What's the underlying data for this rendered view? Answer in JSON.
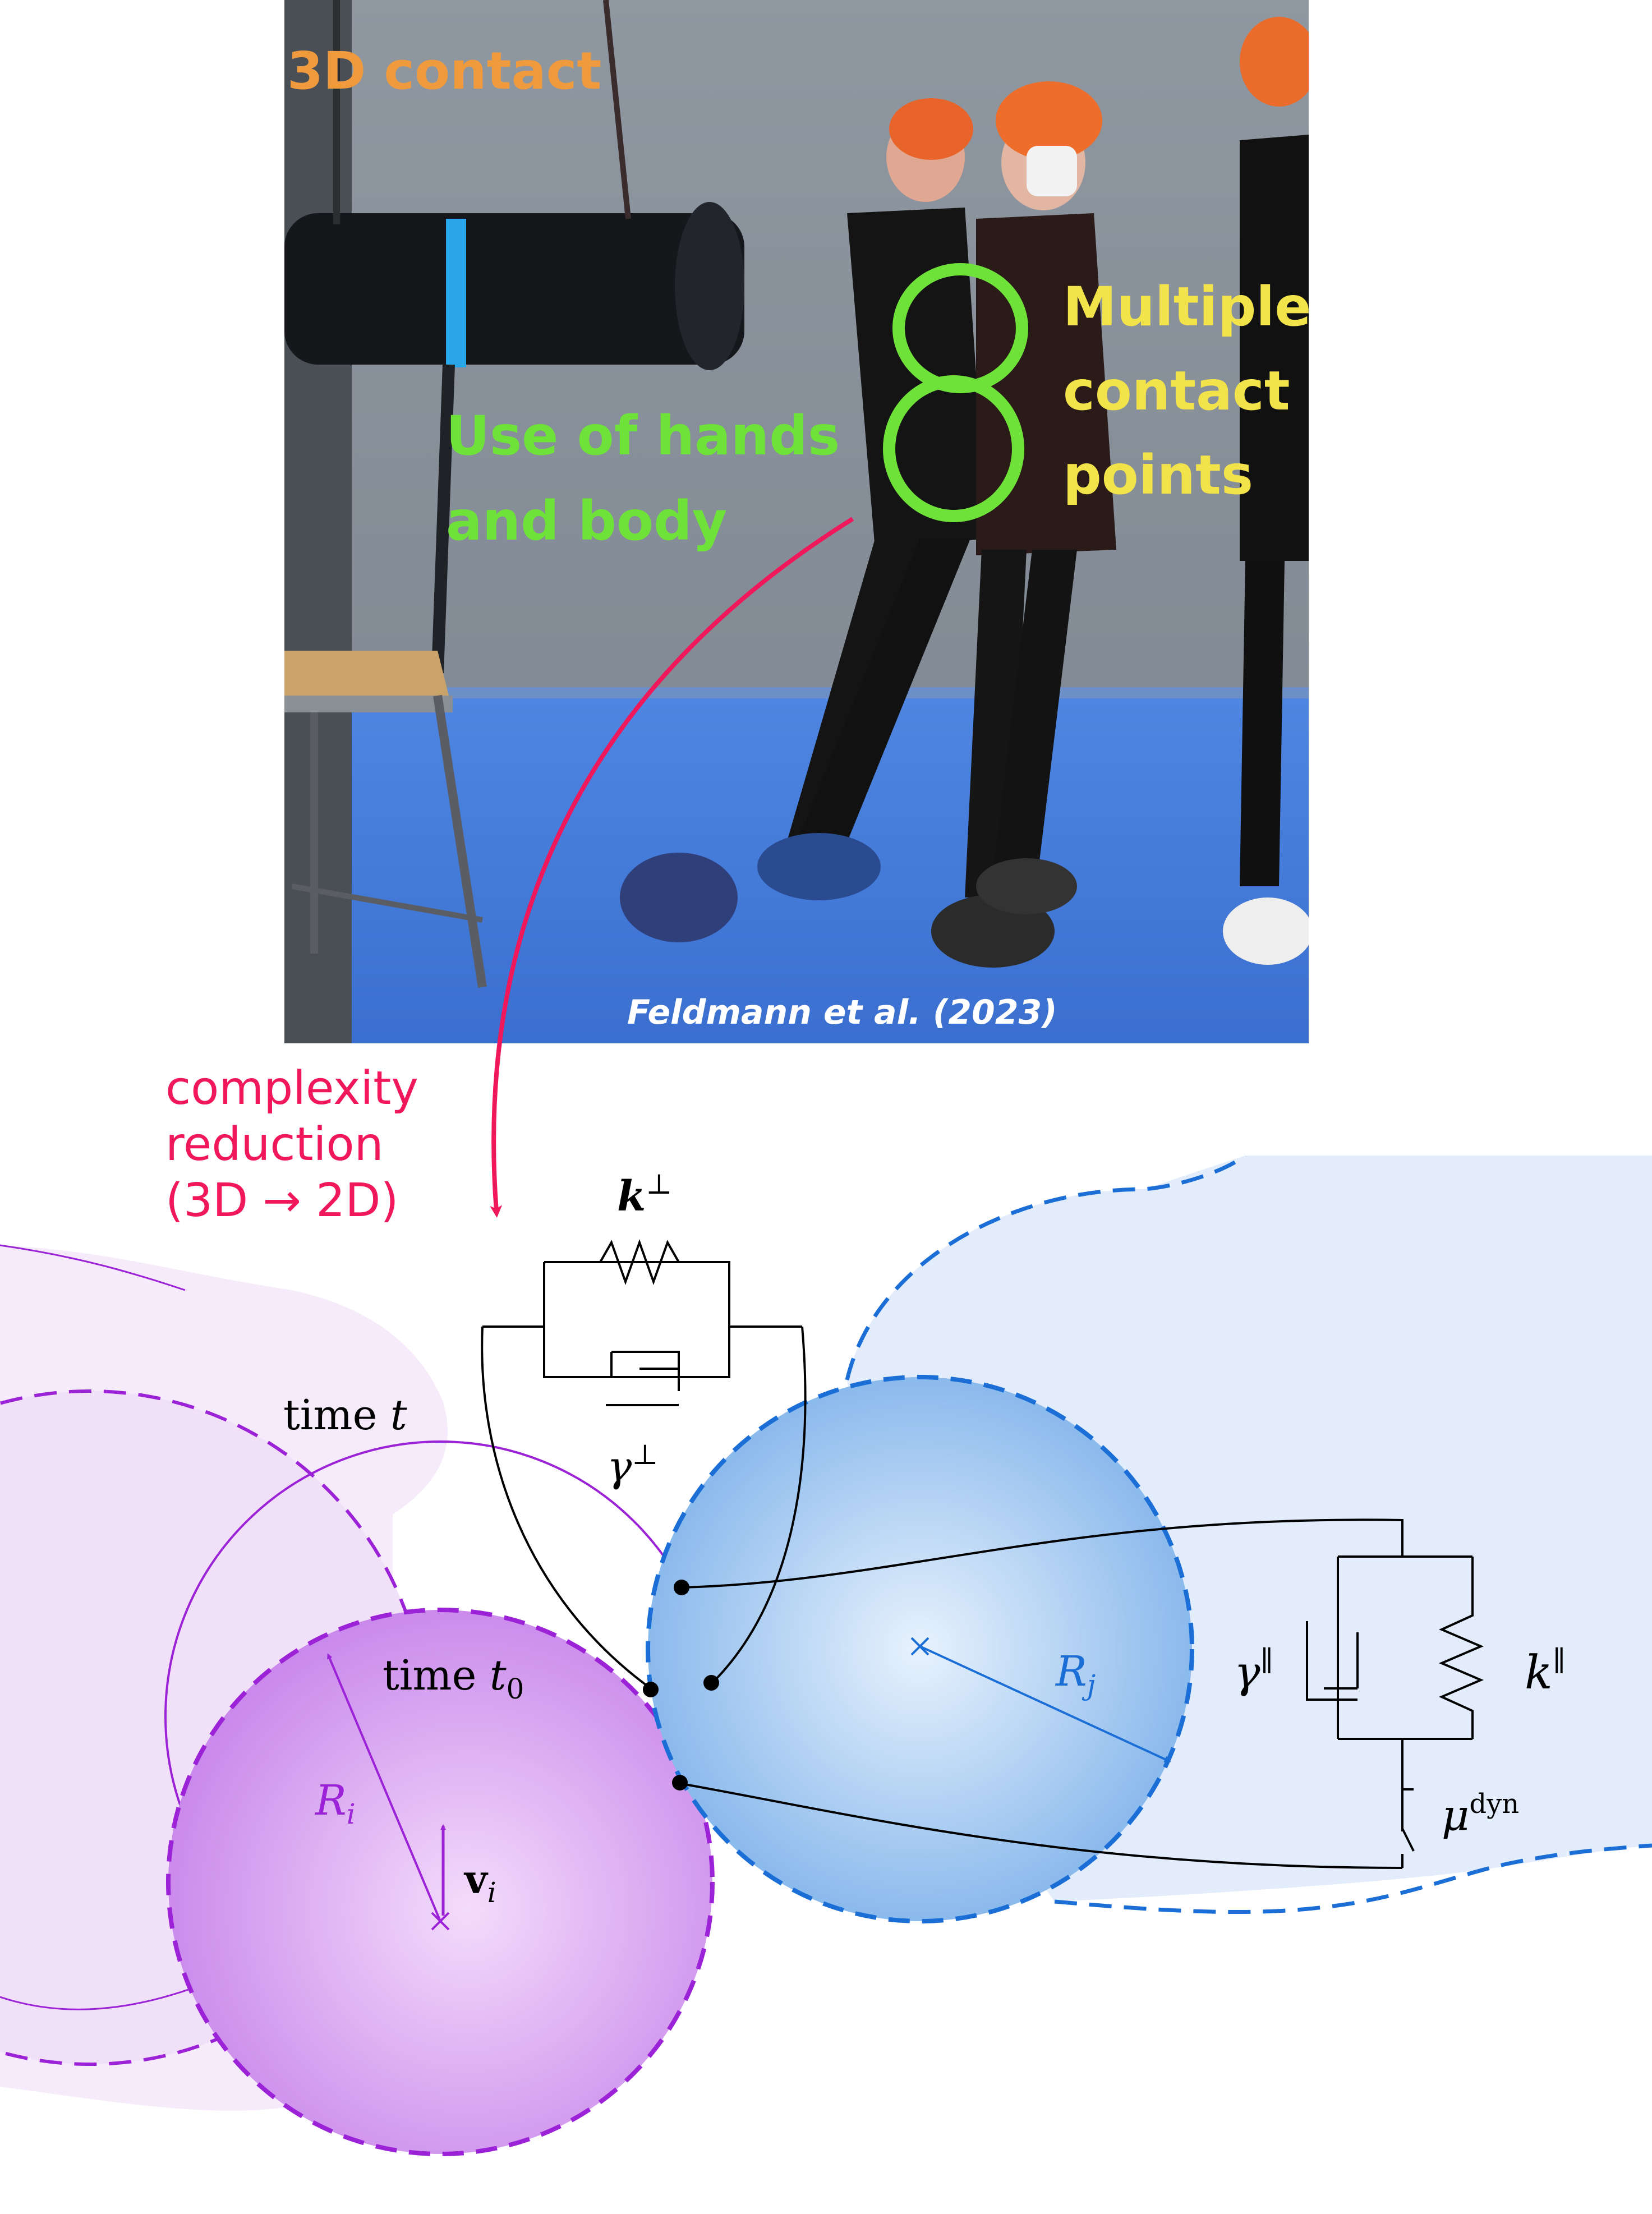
{
  "photo": {
    "label_3d_contact": "3D contact",
    "label_hands_body_line1": "Use of hands",
    "label_hands_body_line2": "and body",
    "label_multiple_line1": "Multiple",
    "label_multiple_line2": "contact",
    "label_multiple_line3": "points",
    "credit": "Feldmann et al. (2023)"
  },
  "reduction": {
    "line1": "complexity",
    "line2": "reduction",
    "line3": "(3D → 2D)"
  },
  "labels": {
    "time_t_word": "time ",
    "time_t_var": "t",
    "time_t0_word": "time ",
    "time_t0_var": "t",
    "time_t0_sub": "0",
    "Ri_var": "R",
    "Ri_sub": "i",
    "vi_var": "v",
    "vi_sub": "i",
    "Rj_var": "R",
    "Rj_sub": "j",
    "k_perp_var": "k",
    "k_perp_sup": "⊥",
    "gamma_perp_var": "γ",
    "gamma_perp_sup": "⊥",
    "gamma_par_var": "γ",
    "gamma_par_sup": "∥",
    "k_par_var": "k",
    "k_par_sup": "∥",
    "mu_var": "μ",
    "mu_sup": "dyn"
  },
  "colors": {
    "purple": "#9b22d6",
    "blue": "#1a6ed6",
    "crimson": "#f0185a",
    "green": "#6fe23a",
    "yellow": "#f2e34a",
    "orange": "#f09a3e"
  }
}
